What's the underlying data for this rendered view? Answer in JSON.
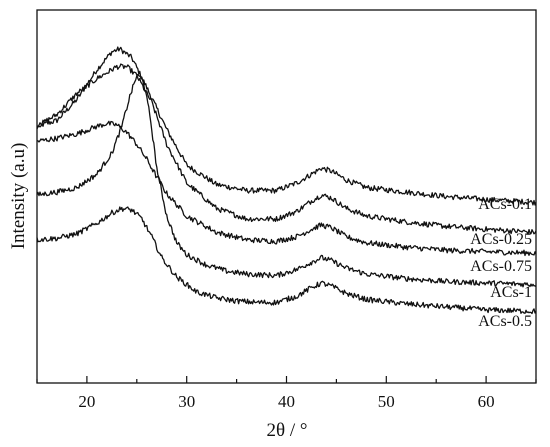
{
  "chart_data": {
    "type": "line",
    "title": "",
    "xlabel": "2θ / °",
    "ylabel": "Intensity (a.u)",
    "xlim": [
      15,
      65
    ],
    "xticks": [
      "20",
      "30",
      "40",
      "50",
      "60"
    ],
    "grid": false,
    "legend": "inline labels at right end of each curve",
    "line_color": "#111111",
    "series": [
      {
        "name": "ACs-0.1",
        "x": [
          15,
          17,
          19,
          21,
          22.5,
          23.3,
          24.5,
          26,
          28,
          30,
          33,
          36,
          39,
          41,
          42.5,
          43.5,
          44.5,
          46,
          48,
          52,
          56,
          60,
          65
        ],
        "y": [
          0.86,
          0.88,
          0.95,
          1.05,
          1.11,
          1.12,
          1.09,
          0.99,
          0.85,
          0.73,
          0.665,
          0.645,
          0.645,
          0.67,
          0.7,
          0.72,
          0.71,
          0.68,
          0.655,
          0.64,
          0.625,
          0.615,
          0.605
        ]
      },
      {
        "name": "ACs-0.25",
        "x": [
          15,
          17,
          19,
          21,
          23,
          24,
          25,
          26.5,
          28,
          30,
          33,
          36,
          39,
          41,
          42.5,
          43.5,
          44.5,
          46,
          48,
          52,
          56,
          60,
          65
        ],
        "y": [
          0.86,
          0.9,
          0.97,
          1.02,
          1.06,
          1.06,
          1.03,
          0.94,
          0.8,
          0.67,
          0.585,
          0.55,
          0.55,
          0.575,
          0.61,
          0.63,
          0.62,
          0.585,
          0.56,
          0.54,
          0.525,
          0.515,
          0.505
        ]
      },
      {
        "name": "ACs-0.75",
        "x": [
          15,
          17,
          19,
          21,
          22,
          23,
          24,
          25,
          26,
          27,
          28,
          30,
          33,
          36,
          39,
          41,
          42.5,
          43.5,
          44.5,
          46,
          48,
          52,
          56,
          60,
          65
        ],
        "y": [
          0.81,
          0.82,
          0.835,
          0.86,
          0.87,
          0.865,
          0.84,
          0.8,
          0.75,
          0.69,
          0.635,
          0.56,
          0.505,
          0.48,
          0.475,
          0.49,
          0.515,
          0.53,
          0.52,
          0.49,
          0.47,
          0.455,
          0.445,
          0.44,
          0.435
        ]
      },
      {
        "name": "ACs-1",
        "x": [
          15,
          17,
          19,
          21,
          22.5,
          23.5,
          24.3,
          25,
          25.6,
          26.3,
          27,
          28,
          29,
          30,
          32,
          34,
          36,
          39,
          41,
          42.5,
          43.5,
          44.5,
          46,
          48,
          52,
          56,
          60,
          65
        ],
        "y": [
          0.63,
          0.64,
          0.655,
          0.7,
          0.77,
          0.86,
          0.96,
          1.03,
          1.02,
          0.9,
          0.72,
          0.56,
          0.47,
          0.43,
          0.395,
          0.375,
          0.365,
          0.36,
          0.38,
          0.405,
          0.42,
          0.41,
          0.385,
          0.365,
          0.35,
          0.34,
          0.335,
          0.33
        ]
      },
      {
        "name": "ACs-0.5",
        "x": [
          15,
          17,
          19,
          21,
          22.5,
          23.5,
          24.5,
          25.5,
          26.5,
          27.5,
          29,
          31,
          33,
          35,
          37,
          39,
          41,
          42.5,
          43.5,
          44.5,
          46,
          48,
          52,
          56,
          60,
          65
        ],
        "y": [
          0.48,
          0.485,
          0.5,
          0.535,
          0.57,
          0.585,
          0.58,
          0.55,
          0.49,
          0.42,
          0.355,
          0.305,
          0.285,
          0.275,
          0.27,
          0.27,
          0.29,
          0.32,
          0.335,
          0.325,
          0.3,
          0.28,
          0.265,
          0.255,
          0.245,
          0.24
        ]
      }
    ]
  }
}
